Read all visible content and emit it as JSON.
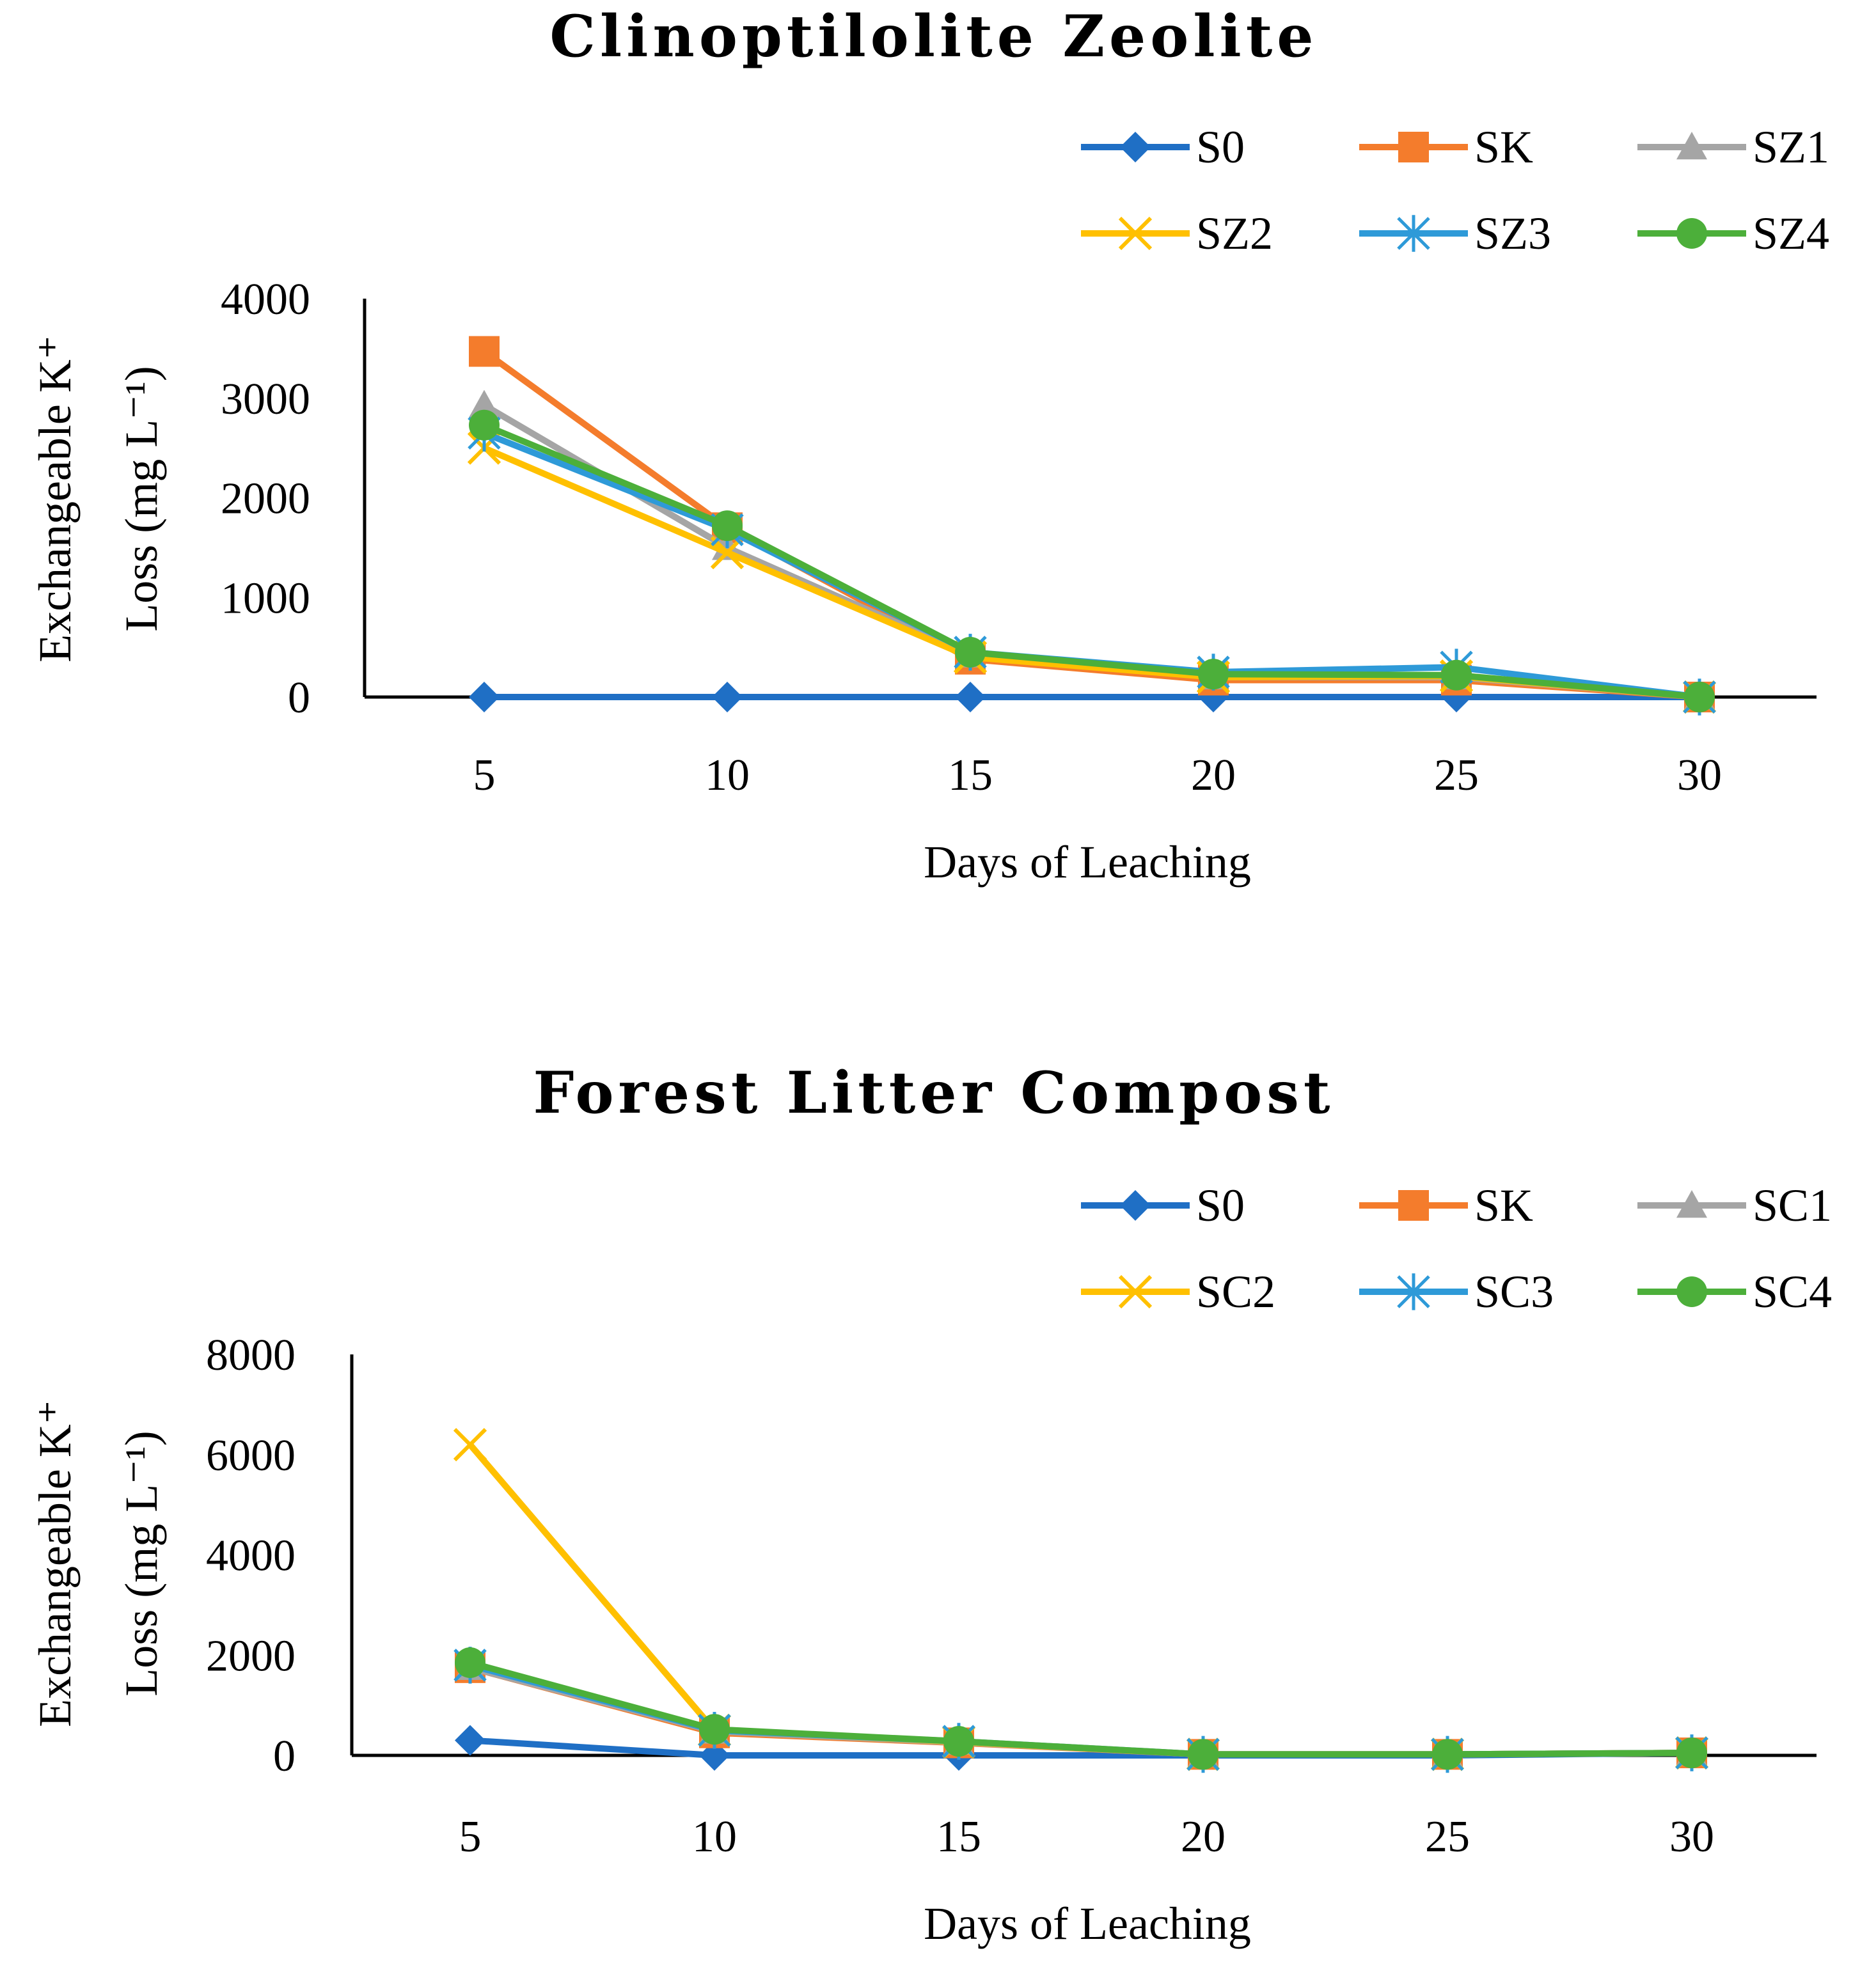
{
  "chart_data": [
    {
      "type": "line",
      "title": "Clinoptilolite Zeolite",
      "xlabel": "Days of Leaching",
      "ylabel_line1": "Exchangeable  K⁺",
      "ylabel_line2": "Loss (mg L⁻¹)",
      "x": [
        5,
        10,
        15,
        20,
        25,
        30
      ],
      "xticks": [
        "5",
        "10",
        "15",
        "20",
        "25",
        "30"
      ],
      "ylim": [
        0,
        4000
      ],
      "yticks": [
        "0",
        "1000",
        "2000",
        "3000",
        "4000"
      ],
      "legend_position": "top-right",
      "series": [
        {
          "name": "S0",
          "color": "#1f6fc5",
          "marker": "diamond",
          "values": [
            0,
            0,
            0,
            0,
            0,
            0
          ]
        },
        {
          "name": "SK",
          "color": "#f47c2c",
          "marker": "square",
          "values": [
            3470,
            1700,
            380,
            170,
            170,
            0
          ]
        },
        {
          "name": "SZ1",
          "color": "#a5a5a5",
          "marker": "triangle",
          "values": [
            2930,
            1500,
            420,
            200,
            200,
            0
          ]
        },
        {
          "name": "SZ2",
          "color": "#ffc000",
          "marker": "x",
          "values": [
            2500,
            1450,
            400,
            200,
            210,
            0
          ]
        },
        {
          "name": "SZ3",
          "color": "#2e9ad8",
          "marker": "star",
          "values": [
            2650,
            1680,
            450,
            250,
            300,
            0
          ]
        },
        {
          "name": "SZ4",
          "color": "#4caf3a",
          "marker": "circle",
          "values": [
            2730,
            1720,
            450,
            230,
            220,
            0
          ]
        }
      ]
    },
    {
      "type": "line",
      "title": "Forest Litter Compost",
      "xlabel": "Days of Leaching",
      "ylabel_line1": "Exchangeable  K⁺",
      "ylabel_line2": "Loss (mg L⁻¹)",
      "x": [
        5,
        10,
        15,
        20,
        25,
        30
      ],
      "xticks": [
        "5",
        "10",
        "15",
        "20",
        "25",
        "30"
      ],
      "ylim": [
        0,
        8000
      ],
      "yticks": [
        "0",
        "2000",
        "4000",
        "6000",
        "8000"
      ],
      "legend_position": "top-right",
      "series": [
        {
          "name": "S0",
          "color": "#1f6fc5",
          "marker": "diamond",
          "values": [
            300,
            0,
            0,
            0,
            0,
            50
          ]
        },
        {
          "name": "SK",
          "color": "#f47c2c",
          "marker": "square",
          "values": [
            1750,
            450,
            250,
            20,
            20,
            50
          ]
        },
        {
          "name": "SC1",
          "color": "#a5a5a5",
          "marker": "triangle",
          "values": [
            1750,
            480,
            260,
            20,
            20,
            50
          ]
        },
        {
          "name": "SC2",
          "color": "#ffc000",
          "marker": "x",
          "values": [
            6200,
            500,
            270,
            20,
            20,
            50
          ]
        },
        {
          "name": "SC3",
          "color": "#2e9ad8",
          "marker": "star",
          "values": [
            1800,
            500,
            280,
            20,
            20,
            50
          ]
        },
        {
          "name": "SC4",
          "color": "#4caf3a",
          "marker": "circle",
          "values": [
            1850,
            520,
            280,
            20,
            20,
            50
          ]
        }
      ]
    }
  ]
}
